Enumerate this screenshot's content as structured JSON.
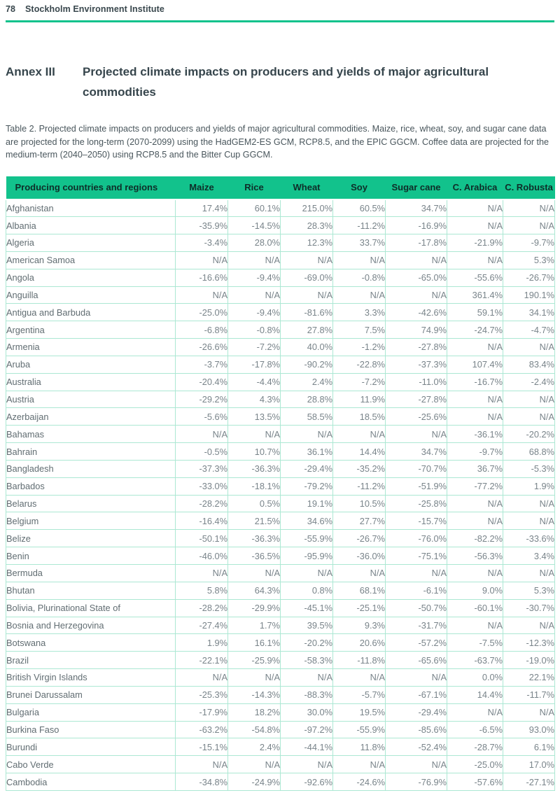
{
  "page": {
    "number": "78",
    "organization": "Stockholm Environment Institute"
  },
  "annex": {
    "label": "Annex III",
    "title": "Projected climate impacts on producers and yields of major agricultural commodities"
  },
  "caption": "Table 2. Projected climate impacts on producers and yields of major agricultural commodities. Maize, rice, wheat, soy, and sugar cane data are projected for the long-term (2070-2099) using the HadGEM2-ES GCM, RCP8.5, and the EPIC GGCM. Coffee data are projected for the medium-term (2040–2050) using RCP8.5 and the Bitter Cup GGCM.",
  "colors": {
    "accent_green": "#12c28c",
    "grid_green": "#ace8d3",
    "header_text": "#0e2d28",
    "heading_text": "#36454c",
    "country_text": "#616d72",
    "value_text": "#79848a"
  },
  "table": {
    "headers": [
      "Producing countries and regions",
      "Maize",
      "Rice",
      "Wheat",
      "Soy",
      "Sugar cane",
      "C. Arabica",
      "C. Robusta"
    ],
    "rows": [
      {
        "country": "Afghanistan",
        "values": [
          "17.4%",
          "60.1%",
          "215.0%",
          "60.5%",
          "34.7%",
          "N/A",
          "N/A"
        ]
      },
      {
        "country": "Albania",
        "values": [
          "-35.9%",
          "-14.5%",
          "28.3%",
          "-11.2%",
          "-16.9%",
          "N/A",
          "N/A"
        ]
      },
      {
        "country": "Algeria",
        "values": [
          "-3.4%",
          "28.0%",
          "12.3%",
          "33.7%",
          "-17.8%",
          "-21.9%",
          "-9.7%"
        ]
      },
      {
        "country": "American Samoa",
        "values": [
          "N/A",
          "N/A",
          "N/A",
          "N/A",
          "N/A",
          "N/A",
          "5.3%"
        ]
      },
      {
        "country": "Angola",
        "values": [
          "-16.6%",
          "-9.4%",
          "-69.0%",
          "-0.8%",
          "-65.0%",
          "-55.6%",
          "-26.7%"
        ]
      },
      {
        "country": "Anguilla",
        "values": [
          "N/A",
          "N/A",
          "N/A",
          "N/A",
          "N/A",
          "361.4%",
          "190.1%"
        ]
      },
      {
        "country": "Antigua and Barbuda",
        "values": [
          "-25.0%",
          "-9.4%",
          "-81.6%",
          "3.3%",
          "-42.6%",
          "59.1%",
          "34.1%"
        ]
      },
      {
        "country": "Argentina",
        "values": [
          "-6.8%",
          "-0.8%",
          "27.8%",
          "7.5%",
          "74.9%",
          "-24.7%",
          "-4.7%"
        ]
      },
      {
        "country": "Armenia",
        "values": [
          "-26.6%",
          "-7.2%",
          "40.0%",
          "-1.2%",
          "-27.8%",
          "N/A",
          "N/A"
        ]
      },
      {
        "country": "Aruba",
        "values": [
          "-3.7%",
          "-17.8%",
          "-90.2%",
          "-22.8%",
          "-37.3%",
          "107.4%",
          "83.4%"
        ]
      },
      {
        "country": "Australia",
        "values": [
          "-20.4%",
          "-4.4%",
          "2.4%",
          "-7.2%",
          "-11.0%",
          "-16.7%",
          "-2.4%"
        ]
      },
      {
        "country": "Austria",
        "values": [
          "-29.2%",
          "4.3%",
          "28.8%",
          "11.9%",
          "-27.8%",
          "N/A",
          "N/A"
        ]
      },
      {
        "country": "Azerbaijan",
        "values": [
          "-5.6%",
          "13.5%",
          "58.5%",
          "18.5%",
          "-25.6%",
          "N/A",
          "N/A"
        ]
      },
      {
        "country": "Bahamas",
        "values": [
          "N/A",
          "N/A",
          "N/A",
          "N/A",
          "N/A",
          "-36.1%",
          "-20.2%"
        ]
      },
      {
        "country": "Bahrain",
        "values": [
          "-0.5%",
          "10.7%",
          "36.1%",
          "14.4%",
          "34.7%",
          "-9.7%",
          "68.8%"
        ]
      },
      {
        "country": "Bangladesh",
        "values": [
          "-37.3%",
          "-36.3%",
          "-29.4%",
          "-35.2%",
          "-70.7%",
          "36.7%",
          "-5.3%"
        ]
      },
      {
        "country": "Barbados",
        "values": [
          "-33.0%",
          "-18.1%",
          "-79.2%",
          "-11.2%",
          "-51.9%",
          "-77.2%",
          "1.9%"
        ]
      },
      {
        "country": "Belarus",
        "values": [
          "-28.2%",
          "0.5%",
          "19.1%",
          "10.5%",
          "-25.8%",
          "N/A",
          "N/A"
        ]
      },
      {
        "country": "Belgium",
        "values": [
          "-16.4%",
          "21.5%",
          "34.6%",
          "27.7%",
          "-15.7%",
          "N/A",
          "N/A"
        ]
      },
      {
        "country": "Belize",
        "values": [
          "-50.1%",
          "-36.3%",
          "-55.9%",
          "-26.7%",
          "-76.0%",
          "-82.2%",
          "-33.6%"
        ]
      },
      {
        "country": "Benin",
        "values": [
          "-46.0%",
          "-36.5%",
          "-95.9%",
          "-36.0%",
          "-75.1%",
          "-56.3%",
          "3.4%"
        ]
      },
      {
        "country": "Bermuda",
        "values": [
          "N/A",
          "N/A",
          "N/A",
          "N/A",
          "N/A",
          "N/A",
          "N/A"
        ]
      },
      {
        "country": "Bhutan",
        "values": [
          "5.8%",
          "64.3%",
          "0.8%",
          "68.1%",
          "-6.1%",
          "9.0%",
          "5.3%"
        ]
      },
      {
        "country": "Bolivia, Plurinational State of",
        "values": [
          "-28.2%",
          "-29.9%",
          "-45.1%",
          "-25.1%",
          "-50.7%",
          "-60.1%",
          "-30.7%"
        ]
      },
      {
        "country": "Bosnia and Herzegovina",
        "values": [
          "-27.4%",
          "1.7%",
          "39.5%",
          "9.3%",
          "-31.7%",
          "N/A",
          "N/A"
        ]
      },
      {
        "country": "Botswana",
        "values": [
          "1.9%",
          "16.1%",
          "-20.2%",
          "20.6%",
          "-57.2%",
          "-7.5%",
          "-12.3%"
        ]
      },
      {
        "country": "Brazil",
        "values": [
          "-22.1%",
          "-25.9%",
          "-58.3%",
          "-11.8%",
          "-65.6%",
          "-63.7%",
          "-19.0%"
        ]
      },
      {
        "country": "British Virgin Islands",
        "values": [
          "N/A",
          "N/A",
          "N/A",
          "N/A",
          "N/A",
          "0.0%",
          "22.1%"
        ]
      },
      {
        "country": "Brunei Darussalam",
        "values": [
          "-25.3%",
          "-14.3%",
          "-88.3%",
          "-5.7%",
          "-67.1%",
          "14.4%",
          "-11.7%"
        ]
      },
      {
        "country": "Bulgaria",
        "values": [
          "-17.9%",
          "18.2%",
          "30.0%",
          "19.5%",
          "-29.4%",
          "N/A",
          "N/A"
        ]
      },
      {
        "country": "Burkina Faso",
        "values": [
          "-63.2%",
          "-54.8%",
          "-97.2%",
          "-55.9%",
          "-85.6%",
          "-6.5%",
          "93.0%"
        ]
      },
      {
        "country": "Burundi",
        "values": [
          "-15.1%",
          "2.4%",
          "-44.1%",
          "11.8%",
          "-52.4%",
          "-28.7%",
          "6.1%"
        ]
      },
      {
        "country": "Cabo Verde",
        "values": [
          "N/A",
          "N/A",
          "N/A",
          "N/A",
          "N/A",
          "-25.0%",
          "17.0%"
        ]
      },
      {
        "country": "Cambodia",
        "values": [
          "-34.8%",
          "-24.9%",
          "-92.6%",
          "-24.6%",
          "-76.9%",
          "-57.6%",
          "-27.1%"
        ]
      }
    ]
  }
}
